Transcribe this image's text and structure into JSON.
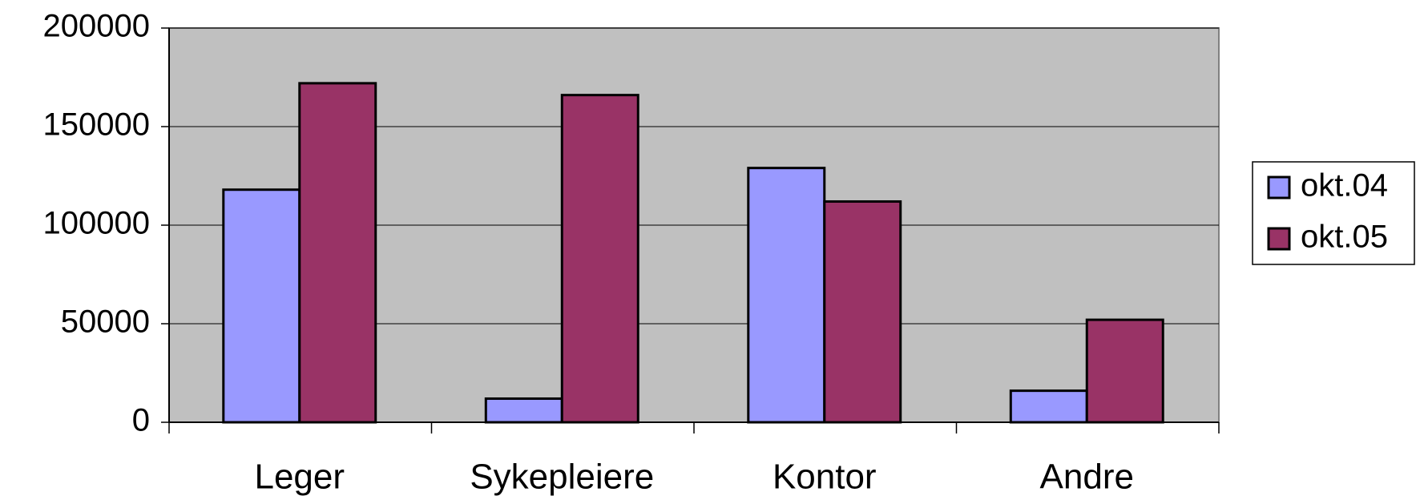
{
  "chart_data": {
    "type": "bar",
    "categories": [
      "Leger",
      "Sykepleiere",
      "Kontor",
      "Andre"
    ],
    "series": [
      {
        "name": "okt.04",
        "color": "#9999ff",
        "values": [
          118000,
          12000,
          129000,
          16000
        ]
      },
      {
        "name": "okt.05",
        "color": "#993366",
        "values": [
          172000,
          166000,
          112000,
          52000
        ]
      }
    ],
    "ylim": [
      0,
      200000
    ],
    "yticks": [
      0,
      50000,
      100000,
      150000,
      200000
    ],
    "grid": true,
    "plot_background": "#c0c0c0",
    "legend": "right"
  }
}
